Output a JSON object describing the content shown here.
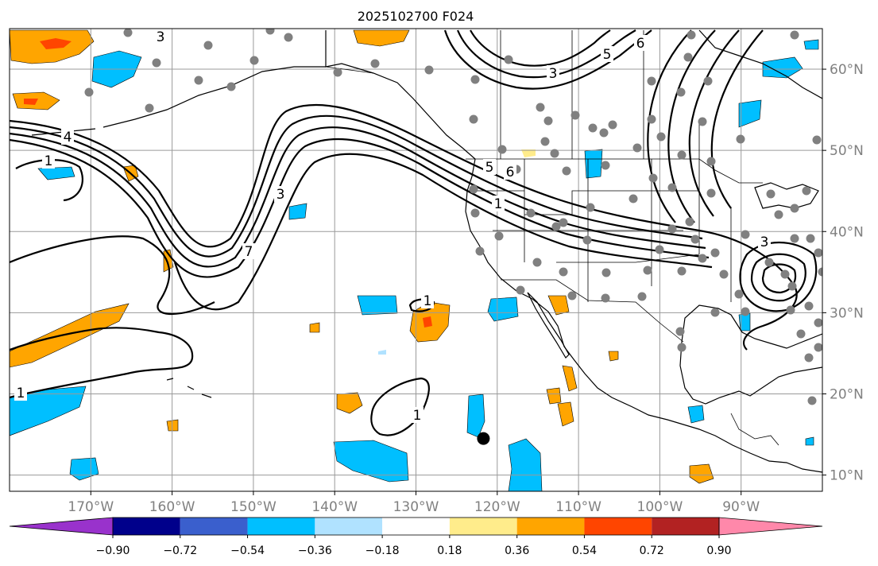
{
  "title": "2025102700 F024",
  "map": {
    "lon_range": [
      -180,
      -80
    ],
    "lat_range": [
      8,
      65
    ],
    "lon_ticks": [
      {
        "lon": -170,
        "label": "170°W"
      },
      {
        "lon": -160,
        "label": "160°W"
      },
      {
        "lon": -150,
        "label": "150°W"
      },
      {
        "lon": -140,
        "label": "140°W"
      },
      {
        "lon": -130,
        "label": "130°W"
      },
      {
        "lon": -120,
        "label": "120°W"
      },
      {
        "lon": -110,
        "label": "110°W"
      },
      {
        "lon": -100,
        "label": "100°W"
      },
      {
        "lon": -90,
        "label": "90°W"
      }
    ],
    "lat_ticks": [
      {
        "lat": 60,
        "label": "60°N"
      },
      {
        "lat": 50,
        "label": "50°N"
      },
      {
        "lat": 40,
        "label": "40°N"
      },
      {
        "lat": 30,
        "label": "30°N"
      },
      {
        "lat": 20,
        "label": "20°N"
      },
      {
        "lat": 10,
        "label": "10°N"
      }
    ],
    "contour_labels": [
      "1",
      "3",
      "4",
      "5",
      "6",
      "7"
    ],
    "marker": {
      "lon": -121.7,
      "lat": 14.5,
      "label": "center-marker"
    }
  },
  "colorbar": {
    "colors": [
      "#9932CC",
      "#00008B",
      "#3A5FCD",
      "#00BFFF",
      "#B0E2FF",
      "#FFFFFF",
      "#FFEC8B",
      "#FFA500",
      "#FF4500",
      "#B22222",
      "#FF88AA"
    ],
    "labels": [
      "−0.90",
      "−0.72",
      "−0.54",
      "−0.36",
      "−0.18",
      "0.18",
      "0.36",
      "0.54",
      "0.72",
      "0.90"
    ]
  },
  "colors": {
    "negative_fill": "#00BFFF",
    "negative_light": "#B0E2FF",
    "positive_fill": "#FFA500",
    "positive_strong": "#FF4500",
    "station_dot": "#808080"
  }
}
